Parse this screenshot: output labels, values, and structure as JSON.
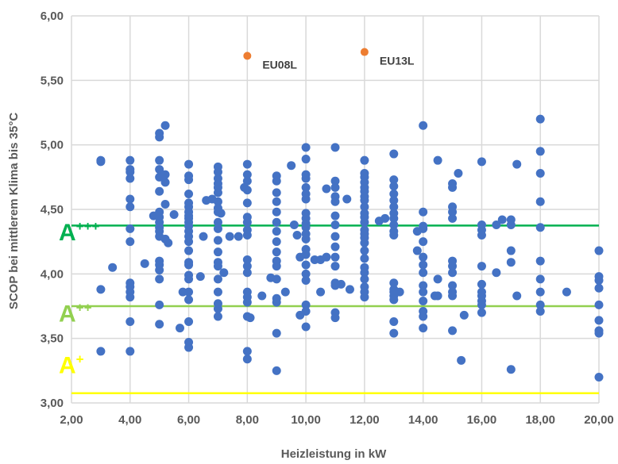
{
  "chart_data": {
    "type": "scatter",
    "xlabel": "Heizleistung in kW",
    "ylabel": "SCOP bei mittlerem Klima bis 35°C",
    "xlim": [
      2,
      20
    ],
    "ylim": [
      3,
      6
    ],
    "x_ticks": [
      "2,00",
      "4,00",
      "6,00",
      "8,00",
      "10,00",
      "12,00",
      "14,00",
      "16,00",
      "18,00",
      "20,00"
    ],
    "y_ticks": [
      "3,00",
      "3,50",
      "4,00",
      "4,50",
      "5,00",
      "5,50",
      "6,00"
    ],
    "grid": true,
    "colors": {
      "points": "#4472c4",
      "highlight": "#ed7d31",
      "grid": "#d9d9d9"
    },
    "thresholds": [
      {
        "y": 4.375,
        "color": "#00b050",
        "label_main": "A",
        "label_sup": "+++",
        "label_y": 4.26
      },
      {
        "y": 3.75,
        "color": "#92d050",
        "label_main": "A",
        "label_sup": "++",
        "label_y": 3.63
      },
      {
        "y": 3.075,
        "color": "#ffff00",
        "label_main": "A",
        "label_sup": "+",
        "label_y": 3.23
      }
    ],
    "highlight_points": [
      {
        "name": "EU08L",
        "x": 8,
        "y": 5.69
      },
      {
        "name": "EU13L",
        "x": 12,
        "y": 5.72
      }
    ],
    "series": [
      {
        "points": [
          [
            3,
            4.88
          ],
          [
            3,
            4.87
          ],
          [
            3,
            3.88
          ],
          [
            3,
            3.4
          ],
          [
            3.4,
            4.05
          ],
          [
            4,
            4.88
          ],
          [
            4,
            4.81
          ],
          [
            4,
            4.79
          ],
          [
            4,
            4.74
          ],
          [
            4,
            4.58
          ],
          [
            4,
            4.52
          ],
          [
            4,
            4.35
          ],
          [
            4,
            4.25
          ],
          [
            4,
            3.93
          ],
          [
            4,
            3.9
          ],
          [
            4,
            3.86
          ],
          [
            4,
            3.82
          ],
          [
            4,
            3.63
          ],
          [
            4,
            3.4
          ],
          [
            4.5,
            4.08
          ],
          [
            4.8,
            4.45
          ],
          [
            5,
            5.09
          ],
          [
            5,
            5.06
          ],
          [
            5,
            4.88
          ],
          [
            5,
            4.81
          ],
          [
            5,
            4.75
          ],
          [
            5,
            4.64
          ],
          [
            5,
            4.48
          ],
          [
            5,
            4.44
          ],
          [
            5,
            4.4
          ],
          [
            5,
            4.36
          ],
          [
            5,
            4.33
          ],
          [
            5,
            4.29
          ],
          [
            5,
            4.1
          ],
          [
            5,
            4.07
          ],
          [
            5,
            4.03
          ],
          [
            5,
            3.96
          ],
          [
            5,
            3.76
          ],
          [
            5,
            3.61
          ],
          [
            5.2,
            5.15
          ],
          [
            5.2,
            4.77
          ],
          [
            5.2,
            4.71
          ],
          [
            5.2,
            4.54
          ],
          [
            5.2,
            4.27
          ],
          [
            5.3,
            4.24
          ],
          [
            5.5,
            4.46
          ],
          [
            5.7,
            3.58
          ],
          [
            5.8,
            3.86
          ],
          [
            6,
            4.85
          ],
          [
            6,
            4.76
          ],
          [
            6,
            4.73
          ],
          [
            6,
            4.62
          ],
          [
            6,
            4.55
          ],
          [
            6,
            4.52
          ],
          [
            6,
            4.48
          ],
          [
            6,
            4.45
          ],
          [
            6,
            4.43
          ],
          [
            6,
            4.4
          ],
          [
            6,
            4.37
          ],
          [
            6,
            4.33
          ],
          [
            6,
            4.29
          ],
          [
            6,
            4.25
          ],
          [
            6,
            4.18
          ],
          [
            6,
            4.09
          ],
          [
            6,
            4.07
          ],
          [
            6,
            3.99
          ],
          [
            6,
            3.96
          ],
          [
            6,
            3.86
          ],
          [
            6,
            3.8
          ],
          [
            6,
            3.63
          ],
          [
            6,
            3.47
          ],
          [
            6,
            3.43
          ],
          [
            6.4,
            3.98
          ],
          [
            6.5,
            4.29
          ],
          [
            6.6,
            4.57
          ],
          [
            6.8,
            4.58
          ],
          [
            7,
            4.83
          ],
          [
            7,
            4.79
          ],
          [
            7,
            4.74
          ],
          [
            7,
            4.7
          ],
          [
            7,
            4.67
          ],
          [
            7,
            4.63
          ],
          [
            7,
            4.56
          ],
          [
            7,
            4.51
          ],
          [
            7,
            4.48
          ],
          [
            7,
            4.4
          ],
          [
            7,
            4.35
          ],
          [
            7,
            4.26
          ],
          [
            7,
            4.17
          ],
          [
            7,
            4.09
          ],
          [
            7,
            4.06
          ],
          [
            7,
            3.96
          ],
          [
            7,
            3.86
          ],
          [
            7,
            3.77
          ],
          [
            7,
            3.73
          ],
          [
            7,
            3.67
          ],
          [
            7.1,
            4.47
          ],
          [
            7.2,
            4.01
          ],
          [
            7.4,
            4.29
          ],
          [
            7.7,
            4.29
          ],
          [
            8,
            4.85
          ],
          [
            8,
            4.77
          ],
          [
            8,
            4.72
          ],
          [
            8,
            4.65
          ],
          [
            8,
            4.55
          ],
          [
            8,
            4.44
          ],
          [
            8,
            4.4
          ],
          [
            8,
            4.34
          ],
          [
            8,
            4.3
          ],
          [
            8,
            4.11
          ],
          [
            8,
            4.06
          ],
          [
            8,
            4.01
          ],
          [
            8,
            3.86
          ],
          [
            8,
            3.82
          ],
          [
            8,
            3.78
          ],
          [
            8,
            3.67
          ],
          [
            8,
            3.4
          ],
          [
            8,
            3.34
          ],
          [
            7.9,
            4.67
          ],
          [
            8.1,
            3.66
          ],
          [
            8.5,
            3.83
          ],
          [
            8.8,
            3.97
          ],
          [
            9,
            4.76
          ],
          [
            9,
            4.72
          ],
          [
            9,
            4.63
          ],
          [
            9,
            4.56
          ],
          [
            9,
            4.48
          ],
          [
            9,
            4.4
          ],
          [
            9,
            4.33
          ],
          [
            9,
            4.25
          ],
          [
            9,
            4.17
          ],
          [
            9,
            4.1
          ],
          [
            9,
            4.06
          ],
          [
            9,
            3.96
          ],
          [
            9,
            3.81
          ],
          [
            9,
            3.78
          ],
          [
            9,
            3.54
          ],
          [
            9,
            3.25
          ],
          [
            9.3,
            3.86
          ],
          [
            9.5,
            4.84
          ],
          [
            9.6,
            4.38
          ],
          [
            9.7,
            4.3
          ],
          [
            9.8,
            4.13
          ],
          [
            9.8,
            3.68
          ],
          [
            10,
            4.98
          ],
          [
            10,
            4.89
          ],
          [
            10,
            4.77
          ],
          [
            10,
            4.74
          ],
          [
            10,
            4.67
          ],
          [
            10,
            4.62
          ],
          [
            10,
            4.58
          ],
          [
            10,
            4.47
          ],
          [
            10,
            4.43
          ],
          [
            10,
            4.39
          ],
          [
            10,
            4.36
          ],
          [
            10,
            4.31
          ],
          [
            10,
            4.27
          ],
          [
            10,
            4.19
          ],
          [
            10,
            4.15
          ],
          [
            10,
            4.07
          ],
          [
            10,
            4.0
          ],
          [
            10,
            3.95
          ],
          [
            10,
            3.76
          ],
          [
            10,
            3.71
          ],
          [
            10,
            3.59
          ],
          [
            10.3,
            4.11
          ],
          [
            10.5,
            4.11
          ],
          [
            10.5,
            3.86
          ],
          [
            10.7,
            4.66
          ],
          [
            10.7,
            4.13
          ],
          [
            11,
            4.98
          ],
          [
            11,
            4.72
          ],
          [
            11,
            4.67
          ],
          [
            11,
            4.6
          ],
          [
            11,
            4.56
          ],
          [
            11,
            4.45
          ],
          [
            11,
            4.38
          ],
          [
            11,
            4.29
          ],
          [
            11,
            4.21
          ],
          [
            11,
            4.13
          ],
          [
            11,
            4.06
          ],
          [
            11,
            3.93
          ],
          [
            11,
            3.91
          ],
          [
            11,
            3.7
          ],
          [
            11,
            3.66
          ],
          [
            11.2,
            3.92
          ],
          [
            11.4,
            4.58
          ],
          [
            11.5,
            3.88
          ],
          [
            12,
            4.88
          ],
          [
            12,
            4.78
          ],
          [
            12,
            4.75
          ],
          [
            12,
            4.71
          ],
          [
            12,
            4.67
          ],
          [
            12,
            4.64
          ],
          [
            12,
            4.6
          ],
          [
            12,
            4.57
          ],
          [
            12,
            4.52
          ],
          [
            12,
            4.47
          ],
          [
            12,
            4.44
          ],
          [
            12,
            4.4
          ],
          [
            12,
            4.34
          ],
          [
            12,
            4.31
          ],
          [
            12,
            4.28
          ],
          [
            12,
            4.24
          ],
          [
            12,
            4.18
          ],
          [
            12,
            4.12
          ],
          [
            12,
            4.05
          ],
          [
            12,
            4.01
          ],
          [
            12,
            3.96
          ],
          [
            12,
            3.9
          ],
          [
            12,
            3.86
          ],
          [
            12,
            3.82
          ],
          [
            12.5,
            4.41
          ],
          [
            12.7,
            4.43
          ],
          [
            13,
            4.93
          ],
          [
            13,
            4.73
          ],
          [
            13,
            4.68
          ],
          [
            13,
            4.62
          ],
          [
            13,
            4.57
          ],
          [
            13,
            4.52
          ],
          [
            13,
            4.47
          ],
          [
            13,
            4.43
          ],
          [
            13,
            4.38
          ],
          [
            13,
            4.33
          ],
          [
            13,
            4.3
          ],
          [
            13,
            3.93
          ],
          [
            13,
            3.88
          ],
          [
            13,
            3.86
          ],
          [
            13,
            3.83
          ],
          [
            13,
            3.8
          ],
          [
            13,
            3.63
          ],
          [
            13,
            3.54
          ],
          [
            13.2,
            3.86
          ],
          [
            13.8,
            4.33
          ],
          [
            13.8,
            4.18
          ],
          [
            14,
            5.15
          ],
          [
            14,
            4.48
          ],
          [
            14,
            4.37
          ],
          [
            14,
            4.35
          ],
          [
            14,
            4.25
          ],
          [
            14,
            4.13
          ],
          [
            14,
            4.07
          ],
          [
            14,
            4.01
          ],
          [
            14,
            3.91
          ],
          [
            14,
            3.86
          ],
          [
            14,
            3.79
          ],
          [
            14,
            3.71
          ],
          [
            14,
            3.67
          ],
          [
            14,
            3.58
          ],
          [
            14.4,
            3.83
          ],
          [
            14.5,
            3.96
          ],
          [
            14.5,
            3.83
          ],
          [
            14.5,
            4.88
          ],
          [
            15,
            4.7
          ],
          [
            15,
            4.67
          ],
          [
            15,
            4.52
          ],
          [
            15,
            4.48
          ],
          [
            15,
            4.43
          ],
          [
            15,
            4.1
          ],
          [
            15,
            4.06
          ],
          [
            15,
            4.01
          ],
          [
            15,
            3.91
          ],
          [
            15,
            3.86
          ],
          [
            15,
            3.83
          ],
          [
            15,
            3.56
          ],
          [
            15.2,
            4.78
          ],
          [
            15.3,
            3.33
          ],
          [
            15.4,
            3.68
          ],
          [
            16,
            4.87
          ],
          [
            16,
            4.38
          ],
          [
            16,
            4.34
          ],
          [
            16,
            4.3
          ],
          [
            16,
            4.06
          ],
          [
            16,
            3.92
          ],
          [
            16,
            3.86
          ],
          [
            16,
            3.83
          ],
          [
            16,
            3.79
          ],
          [
            16,
            3.76
          ],
          [
            16,
            3.7
          ],
          [
            16.5,
            4.38
          ],
          [
            16.5,
            4.01
          ],
          [
            16.7,
            4.42
          ],
          [
            17,
            4.42
          ],
          [
            17,
            4.38
          ],
          [
            17,
            4.18
          ],
          [
            17,
            4.09
          ],
          [
            17,
            3.26
          ],
          [
            17.2,
            4.85
          ],
          [
            17.2,
            3.83
          ],
          [
            18,
            5.2
          ],
          [
            18,
            4.95
          ],
          [
            18,
            4.78
          ],
          [
            18,
            4.56
          ],
          [
            18,
            4.36
          ],
          [
            18,
            4.1
          ],
          [
            18,
            3.96
          ],
          [
            18,
            3.86
          ],
          [
            18,
            3.76
          ],
          [
            18,
            3.71
          ],
          [
            18.9,
            3.86
          ],
          [
            20,
            4.18
          ],
          [
            20,
            3.98
          ],
          [
            20,
            3.95
          ],
          [
            20,
            3.89
          ],
          [
            20,
            3.76
          ],
          [
            20,
            3.64
          ],
          [
            20,
            3.56
          ],
          [
            20,
            3.54
          ],
          [
            20,
            3.2
          ]
        ]
      }
    ]
  }
}
